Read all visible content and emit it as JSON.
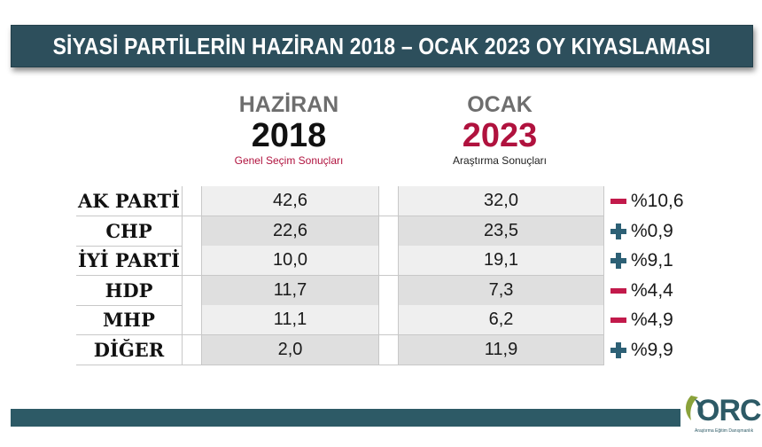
{
  "title": "SİYASİ PARTİLERİN HAZİRAN 2018 – OCAK 2023 OY KIYASLAMASI",
  "columns": {
    "june": {
      "month": "HAZİRAN",
      "year": "2018",
      "source": "Genel Seçim Sonuçları"
    },
    "jan": {
      "month": "OCAK",
      "year": "2023",
      "source": "Araştırma Sonuçları"
    }
  },
  "chart_data": {
    "type": "table",
    "title": "SİYASİ PARTİLERİN HAZİRAN 2018 – OCAK 2023 OY KIYASLAMASI",
    "column_headers": [
      "HAZİRAN 2018",
      "OCAK 2023"
    ],
    "rows": [
      {
        "party": "AK PARTİ",
        "v2018": "42,6",
        "v2023": "32,0",
        "sign": "minus",
        "change": "%10,6"
      },
      {
        "party": "CHP",
        "v2018": "22,6",
        "v2023": "23,5",
        "sign": "plus",
        "change": "%0,9"
      },
      {
        "party": "İYİ PARTİ",
        "v2018": "10,0",
        "v2023": "19,1",
        "sign": "plus",
        "change": "%9,1"
      },
      {
        "party": "HDP",
        "v2018": "11,7",
        "v2023": "7,3",
        "sign": "minus",
        "change": "%4,4"
      },
      {
        "party": "MHP",
        "v2018": "11,1",
        "v2023": "6,2",
        "sign": "minus",
        "change": "%4,9"
      },
      {
        "party": "DİĞER",
        "v2018": "2,0",
        "v2023": "11,9",
        "sign": "plus",
        "change": "%9,9"
      }
    ]
  },
  "colors": {
    "header_bar": "#2d4f5c",
    "accent_red": "#b0123e",
    "minus": "#c21a4b",
    "plus": "#2d6075",
    "bottom_bar": "#2d5a66"
  },
  "logo": {
    "name": "ORC",
    "tagline": "Araştırma Eğitim Danışmanlık"
  }
}
